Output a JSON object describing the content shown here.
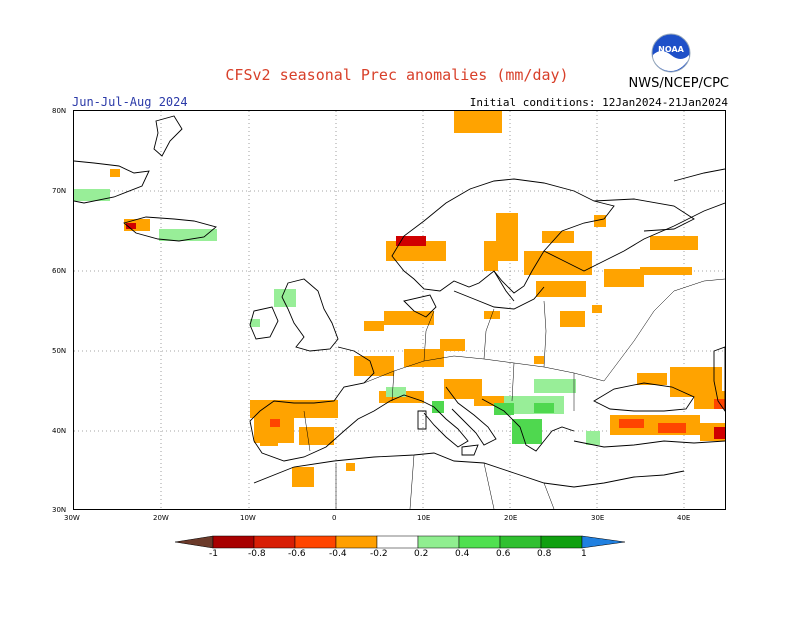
{
  "header": {
    "title": "CFSv2 seasonal Prec anomalies (mm/day)",
    "period": "Jun-Jul-Aug 2024",
    "initial_conditions": "Initial conditions: 12Jan2024-21Jan2024",
    "agency": "NWS/NCEP/CPC",
    "logo_text": "NOAA"
  },
  "axes": {
    "lat_labels": [
      "80N",
      "70N",
      "60N",
      "50N",
      "40N",
      "30N"
    ],
    "lon_labels": [
      "30W",
      "20W",
      "10W",
      "0",
      "10E",
      "20E",
      "30E",
      "40E"
    ],
    "grid": "dotted"
  },
  "colorbar": {
    "labels": [
      "-1",
      "-0.8",
      "-0.6",
      "-0.4",
      "-0.2",
      "0.2",
      "0.4",
      "0.6",
      "0.8",
      "1"
    ],
    "colors": [
      "#6b3a2a",
      "#a80000",
      "#d81e05",
      "#ff4500",
      "#ff9f00",
      "#ffffff",
      "#90ee90",
      "#50e050",
      "#30c030",
      "#10a010",
      "#2080e0"
    ]
  },
  "colors": {
    "dry_light": "#ffa300",
    "dry_mid": "#ff4500",
    "dry_strong": "#d00000",
    "wet_light": "#98ee98",
    "wet_mid": "#4fd84f",
    "border": "#000000",
    "title": "#d8402a"
  }
}
